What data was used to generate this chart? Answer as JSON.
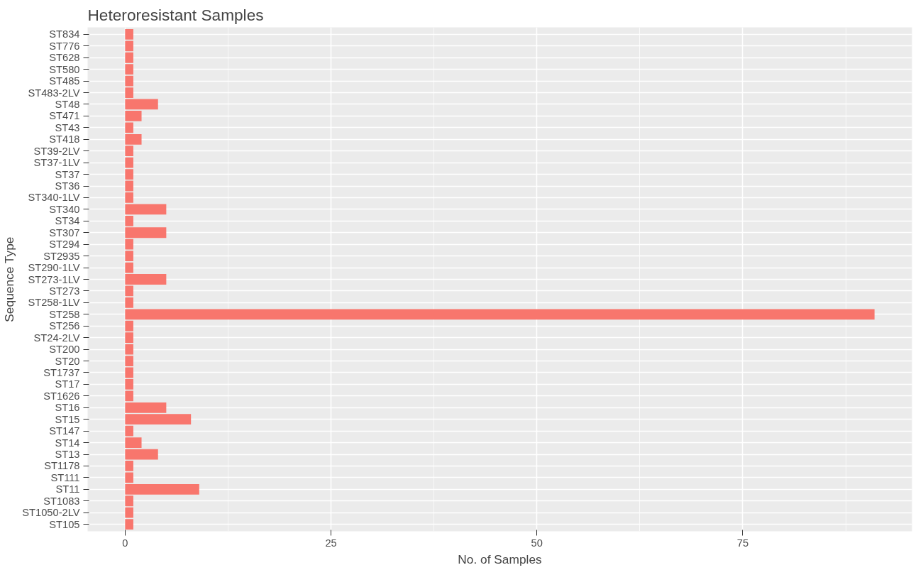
{
  "chart_data": {
    "type": "bar",
    "orientation": "horizontal",
    "title": "Heteroresistant Samples",
    "xlabel": "No. of Samples",
    "ylabel": "Sequence Type",
    "categories": [
      "ST834",
      "ST776",
      "ST628",
      "ST580",
      "ST485",
      "ST483-2LV",
      "ST48",
      "ST471",
      "ST43",
      "ST418",
      "ST39-2LV",
      "ST37-1LV",
      "ST37",
      "ST36",
      "ST340-1LV",
      "ST340",
      "ST34",
      "ST307",
      "ST294",
      "ST2935",
      "ST290-1LV",
      "ST273-1LV",
      "ST273",
      "ST258-1LV",
      "ST258",
      "ST256",
      "ST24-2LV",
      "ST200",
      "ST20",
      "ST1737",
      "ST17",
      "ST1626",
      "ST16",
      "ST15",
      "ST147",
      "ST14",
      "ST13",
      "ST1178",
      "ST111",
      "ST11",
      "ST1083",
      "ST1050-2LV",
      "ST105"
    ],
    "values": [
      1,
      1,
      1,
      1,
      1,
      1,
      4,
      2,
      1,
      2,
      1,
      1,
      1,
      1,
      1,
      5,
      1,
      5,
      1,
      1,
      1,
      5,
      1,
      1,
      91,
      1,
      1,
      1,
      1,
      1,
      1,
      1,
      5,
      8,
      1,
      2,
      4,
      1,
      1,
      9,
      1,
      1,
      1
    ],
    "color": "#f8766d",
    "xlim": [
      -4.55,
      95.55
    ],
    "xticks": [
      0,
      25,
      50,
      75
    ],
    "grid": true
  }
}
